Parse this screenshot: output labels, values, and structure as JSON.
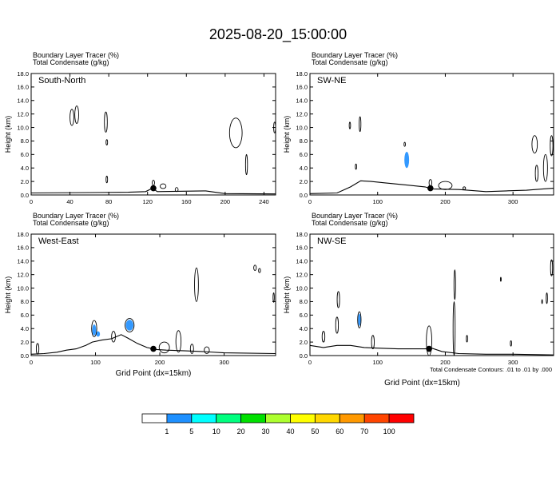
{
  "title": "2025-08-20_15:00:00",
  "chart_data": [
    {
      "type": "cross-section",
      "label": "South-North",
      "header": [
        "Boundary Layer Tracer   (%)",
        "Total Condensate   (g/kg)"
      ],
      "ylabel": "Height (km)",
      "xlabel": "",
      "xlim": [
        0,
        252
      ],
      "ylim": [
        0,
        18
      ],
      "xticks": [
        "0",
        "40",
        "80",
        "120",
        "160",
        "200",
        "240"
      ],
      "yticks": [
        "0.0",
        "2.0",
        "4.0",
        "6.0",
        "8.0",
        "10.0",
        "12.0",
        "14.0",
        "16.0",
        "18.0"
      ],
      "pbl_height": [
        [
          0,
          0.3
        ],
        [
          60,
          0.35
        ],
        [
          100,
          0.4
        ],
        [
          118,
          0.5
        ],
        [
          125,
          1.0
        ],
        [
          130,
          0.5
        ],
        [
          150,
          0.55
        ],
        [
          180,
          0.6
        ],
        [
          200,
          0.2
        ],
        [
          252,
          0.15
        ]
      ],
      "tracer_blobs": [],
      "condensate_contours": [
        {
          "x": 42,
          "y": 11.5,
          "rx": 2,
          "ry": 1.2
        },
        {
          "x": 47,
          "y": 11.9,
          "rx": 2,
          "ry": 1.3
        },
        {
          "x": 77,
          "y": 10.8,
          "rx": 1.5,
          "ry": 1.5
        },
        {
          "x": 78,
          "y": 7.8,
          "rx": 0.8,
          "ry": 0.4
        },
        {
          "x": 78,
          "y": 2.3,
          "rx": 0.8,
          "ry": 0.5
        },
        {
          "x": 126,
          "y": 1.8,
          "rx": 1.2,
          "ry": 0.4
        },
        {
          "x": 136,
          "y": 1.3,
          "rx": 3,
          "ry": 0.35
        },
        {
          "x": 150,
          "y": 0.8,
          "rx": 1.5,
          "ry": 0.3
        },
        {
          "x": 211,
          "y": 9.2,
          "rx": 6.5,
          "ry": 2.2
        },
        {
          "x": 222,
          "y": 4.5,
          "rx": 1,
          "ry": 1.5
        },
        {
          "x": 251,
          "y": 10.0,
          "rx": 1,
          "ry": 0.8
        }
      ],
      "marker": {
        "x": 126,
        "y": 1.0
      }
    },
    {
      "type": "cross-section",
      "label": "SW-NE",
      "header": [
        "Boundary Layer Tracer   (%)",
        "Total Condensate   (g/kg)"
      ],
      "ylabel": "Height (km)",
      "xlabel": "",
      "xlim": [
        0,
        360
      ],
      "ylim": [
        0,
        18
      ],
      "xticks": [
        "0",
        "100",
        "200",
        "300"
      ],
      "yticks": [
        "0.0",
        "2.0",
        "4.0",
        "6.0",
        "8.0",
        "10.0",
        "12.0",
        "14.0",
        "16.0",
        "18.0"
      ],
      "pbl_height": [
        [
          0,
          0.2
        ],
        [
          40,
          0.3
        ],
        [
          60,
          1.2
        ],
        [
          75,
          2.1
        ],
        [
          90,
          2.0
        ],
        [
          110,
          1.8
        ],
        [
          140,
          1.5
        ],
        [
          170,
          1.2
        ],
        [
          180,
          0.9
        ],
        [
          220,
          0.8
        ],
        [
          260,
          0.5
        ],
        [
          290,
          0.6
        ],
        [
          320,
          0.7
        ],
        [
          345,
          0.9
        ],
        [
          360,
          1.0
        ]
      ],
      "tracer_blobs": [
        {
          "x": 143,
          "y": 5.2,
          "rx": 3.5,
          "ry": 1.2
        }
      ],
      "condensate_contours": [
        {
          "x": 59,
          "y": 10.3,
          "rx": 1,
          "ry": 0.5
        },
        {
          "x": 74,
          "y": 10.5,
          "rx": 1.3,
          "ry": 1.1
        },
        {
          "x": 68,
          "y": 4.2,
          "rx": 1,
          "ry": 0.4
        },
        {
          "x": 140,
          "y": 7.5,
          "rx": 1,
          "ry": 0.3
        },
        {
          "x": 178,
          "y": 1.8,
          "rx": 2,
          "ry": 0.5
        },
        {
          "x": 200,
          "y": 1.4,
          "rx": 10,
          "ry": 0.6
        },
        {
          "x": 228,
          "y": 1.0,
          "rx": 2,
          "ry": 0.2
        },
        {
          "x": 332,
          "y": 7.5,
          "rx": 4,
          "ry": 1.3
        },
        {
          "x": 335,
          "y": 3.2,
          "rx": 2,
          "ry": 1.2
        },
        {
          "x": 348,
          "y": 4.0,
          "rx": 3,
          "ry": 2
        },
        {
          "x": 357,
          "y": 7.3,
          "rx": 2,
          "ry": 1.5
        }
      ],
      "marker": {
        "x": 178,
        "y": 1.0
      }
    },
    {
      "type": "cross-section",
      "label": "West-East",
      "header": [
        "Boundary Layer Tracer   (%)",
        "Total Condensate   (g/kg)"
      ],
      "ylabel": "Height (km)",
      "xlabel": "Grid Point (dx=15km)",
      "xlim": [
        0,
        380
      ],
      "ylim": [
        0,
        18
      ],
      "xticks": [
        "0",
        "100",
        "200",
        "300"
      ],
      "yticks": [
        "0.0",
        "2.0",
        "4.0",
        "6.0",
        "8.0",
        "10.0",
        "12.0",
        "14.0",
        "16.0",
        "18.0"
      ],
      "pbl_height": [
        [
          0,
          0.2
        ],
        [
          20,
          0.3
        ],
        [
          40,
          0.5
        ],
        [
          55,
          0.8
        ],
        [
          70,
          1.0
        ],
        [
          85,
          1.5
        ],
        [
          95,
          2.0
        ],
        [
          110,
          2.3
        ],
        [
          125,
          2.5
        ],
        [
          140,
          3.1
        ],
        [
          150,
          2.6
        ],
        [
          165,
          1.8
        ],
        [
          180,
          1.2
        ],
        [
          195,
          0.9
        ],
        [
          210,
          0.8
        ],
        [
          240,
          0.7
        ],
        [
          265,
          0.6
        ],
        [
          300,
          0.4
        ],
        [
          380,
          0.3
        ]
      ],
      "tracer_blobs": [
        {
          "x": 98,
          "y": 3.8,
          "rx": 3,
          "ry": 0.8
        },
        {
          "x": 104,
          "y": 3.2,
          "rx": 3,
          "ry": 0.4
        },
        {
          "x": 153,
          "y": 4.5,
          "rx": 6,
          "ry": 0.8
        }
      ],
      "condensate_contours": [
        {
          "x": 10,
          "y": 1.0,
          "rx": 2,
          "ry": 0.8
        },
        {
          "x": 98,
          "y": 4.0,
          "rx": 4,
          "ry": 1.2
        },
        {
          "x": 128,
          "y": 2.8,
          "rx": 3,
          "ry": 0.8
        },
        {
          "x": 153,
          "y": 4.5,
          "rx": 7,
          "ry": 1.0
        },
        {
          "x": 207,
          "y": 1.2,
          "rx": 8,
          "ry": 0.8
        },
        {
          "x": 229,
          "y": 2.1,
          "rx": 4,
          "ry": 1.6
        },
        {
          "x": 257,
          "y": 10.5,
          "rx": 3,
          "ry": 2.5
        },
        {
          "x": 250,
          "y": 1.0,
          "rx": 2.5,
          "ry": 0.7
        },
        {
          "x": 273,
          "y": 0.8,
          "rx": 4,
          "ry": 0.5
        },
        {
          "x": 348,
          "y": 13.0,
          "rx": 2,
          "ry": 0.4
        },
        {
          "x": 355,
          "y": 12.6,
          "rx": 1.5,
          "ry": 0.3
        },
        {
          "x": 377,
          "y": 8.6,
          "rx": 1,
          "ry": 0.7
        }
      ],
      "marker": {
        "x": 190,
        "y": 1.0
      }
    },
    {
      "type": "cross-section",
      "label": "NW-SE",
      "header": [
        "Boundary Layer Tracer   (%)",
        "Total Condensate   (g/kg)"
      ],
      "ylabel": "Height (km)",
      "xlabel": "Grid Point (dx=15km)",
      "xlim": [
        0,
        360
      ],
      "ylim": [
        0,
        18
      ],
      "xticks": [
        "0",
        "100",
        "200",
        "300"
      ],
      "yticks": [
        "0.0",
        "2.0",
        "4.0",
        "6.0",
        "8.0",
        "10.0",
        "12.0",
        "14.0",
        "16.0",
        "18.0"
      ],
      "pbl_height": [
        [
          0,
          1.5
        ],
        [
          20,
          1.2
        ],
        [
          40,
          1.5
        ],
        [
          60,
          1.5
        ],
        [
          80,
          1.2
        ],
        [
          100,
          1.1
        ],
        [
          130,
          1.0
        ],
        [
          150,
          1.0
        ],
        [
          170,
          1.0
        ],
        [
          180,
          1.1
        ],
        [
          195,
          0.6
        ],
        [
          220,
          0.3
        ],
        [
          260,
          0.2
        ],
        [
          300,
          0.2
        ],
        [
          360,
          0.1
        ]
      ],
      "tracer_blobs": [
        {
          "x": 73,
          "y": 5.3,
          "rx": 2,
          "ry": 0.9
        }
      ],
      "condensate_contours": [
        {
          "x": 20,
          "y": 2.8,
          "rx": 2,
          "ry": 0.8
        },
        {
          "x": 42,
          "y": 8.3,
          "rx": 1.8,
          "ry": 1.2
        },
        {
          "x": 40,
          "y": 4.5,
          "rx": 2,
          "ry": 1.2
        },
        {
          "x": 73,
          "y": 5.3,
          "rx": 2.5,
          "ry": 1.2
        },
        {
          "x": 93,
          "y": 2.0,
          "rx": 2,
          "ry": 1.0
        },
        {
          "x": 176,
          "y": 2.2,
          "rx": 4,
          "ry": 2.2
        },
        {
          "x": 214,
          "y": 10.5,
          "rx": 1.2,
          "ry": 2.2
        },
        {
          "x": 213,
          "y": 4.0,
          "rx": 1.5,
          "ry": 4.0
        },
        {
          "x": 232,
          "y": 2.5,
          "rx": 1,
          "ry": 0.5
        },
        {
          "x": 282,
          "y": 11.3,
          "rx": 0.6,
          "ry": 0.3
        },
        {
          "x": 297,
          "y": 1.8,
          "rx": 1,
          "ry": 0.4
        },
        {
          "x": 343,
          "y": 8.0,
          "rx": 0.5,
          "ry": 0.3
        },
        {
          "x": 357,
          "y": 13.0,
          "rx": 1.5,
          "ry": 1.2
        },
        {
          "x": 350,
          "y": 8.5,
          "rx": 1,
          "ry": 0.8
        }
      ],
      "marker": {
        "x": 176,
        "y": 1.0
      }
    }
  ],
  "contour_note": "Total Condensate Contours: .01 to .01 by .000",
  "legend": {
    "labels": [
      "1",
      "5",
      "10",
      "20",
      "30",
      "40",
      "50",
      "60",
      "70",
      "100"
    ],
    "colors": [
      "#ffffff",
      "#1e90ff",
      "#00ffff",
      "#00ff7f",
      "#00e000",
      "#adff2f",
      "#ffff00",
      "#ffd700",
      "#ff9900",
      "#ff4500",
      "#ff0000"
    ]
  },
  "colors": {
    "tracer": "#3399ff",
    "pbl_line": "#000000",
    "contour": "#000000"
  }
}
